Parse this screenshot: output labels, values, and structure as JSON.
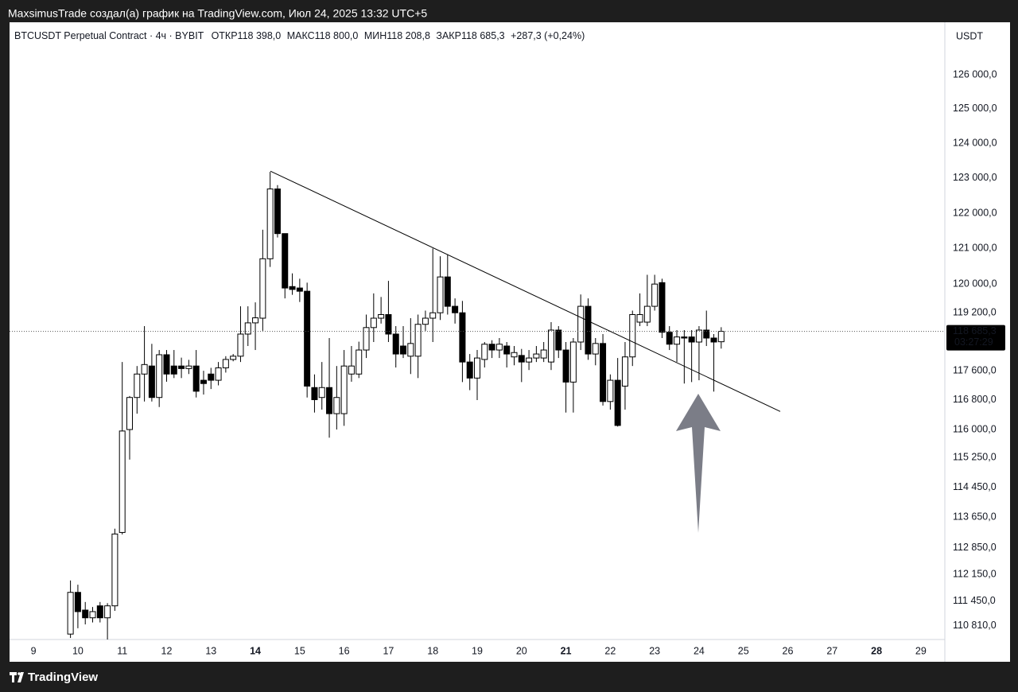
{
  "header": {
    "title": "MaxsimusTrade создал(а) график на TradingView.com, Июл 24, 2025 13:32 UTC+5"
  },
  "footer": {
    "brand": "TradingView"
  },
  "chart_data": {
    "type": "candlestick",
    "symbol": "BTCUSDT Perpetual Contract · 4ч · BYBIT",
    "ohlc_legend": [
      {
        "label": "ОТКР",
        "value": "118 398,0"
      },
      {
        "label": "МАКС",
        "value": "118 800,0"
      },
      {
        "label": "МИН",
        "value": "118 208,8"
      },
      {
        "label": "ЗАКР",
        "value": "118 685,3"
      }
    ],
    "change": "+287,3 (+0,24%)",
    "currency": "USDT",
    "x": [
      9.8333,
      10,
      10.1667,
      10.3333,
      10.5,
      10.6667,
      10.8333,
      11,
      11.1667,
      11.3333,
      11.5,
      11.6667,
      11.8333,
      12,
      12.1667,
      12.3333,
      12.5,
      12.6667,
      12.8333,
      13,
      13.1667,
      13.3333,
      13.5,
      13.6667,
      13.8333,
      14,
      14.1667,
      14.3333,
      14.5,
      14.6667,
      14.8333,
      15,
      15.1667,
      15.3333,
      15.5,
      15.6667,
      15.8333,
      16,
      16.1667,
      16.3333,
      16.5,
      16.6667,
      16.8333,
      17,
      17.1667,
      17.3333,
      17.5,
      17.6667,
      17.8333,
      18,
      18.1667,
      18.3333,
      18.5,
      18.6667,
      18.8333,
      19,
      19.1667,
      19.3333,
      19.5,
      19.6667,
      19.8333,
      20,
      20.1667,
      20.3333,
      20.5,
      20.6667,
      20.8333,
      21,
      21.1667,
      21.3333,
      21.5,
      21.6667,
      21.8333,
      22,
      22.1667,
      22.3333,
      22.5,
      22.6667,
      22.8333,
      23,
      23.1667,
      23.3333,
      23.5,
      23.6667,
      23.8333,
      24,
      24.1667,
      24.3333,
      24.5
    ],
    "open": [
      110600,
      111680,
      111220,
      111020,
      111330,
      111020,
      111330,
      113250,
      116000,
      116870,
      117510,
      117730,
      116870,
      118040,
      117730,
      117730,
      117660,
      117730,
      117340,
      117510,
      117340,
      117680,
      117910,
      118000,
      118610,
      118920,
      119050,
      120710,
      122690,
      121420,
      119930,
      119890,
      119800,
      117140,
      116870,
      117140,
      116430,
      116430,
      117510,
      117510,
      118170,
      118790,
      119050,
      119150,
      118610,
      118280,
      118000,
      118000,
      118880,
      119050,
      119200,
      120200,
      119380,
      119200,
      117840,
      117400,
      117910,
      118330,
      118170,
      118280,
      117980,
      118020,
      117840,
      117950,
      117950,
      117840,
      118720,
      118170,
      117290,
      118390,
      119380,
      118060,
      118350,
      116760,
      117340,
      117180,
      117980,
      118940,
      118940,
      119380,
      120040,
      118660,
      118330,
      118530,
      118530,
      118390,
      118720,
      118500,
      118398
    ],
    "high": [
      111990,
      111880,
      111430,
      111300,
      111430,
      111400,
      113350,
      117840,
      116910,
      117730,
      118830,
      118340,
      118170,
      118170,
      118170,
      117960,
      117900,
      118170,
      117600,
      117680,
      117840,
      118000,
      118060,
      119380,
      119380,
      119490,
      121530,
      123180,
      122800,
      121420,
      120300,
      120150,
      120040,
      117500,
      117840,
      118500,
      117730,
      118170,
      118280,
      118400,
      119150,
      119740,
      119640,
      120090,
      118830,
      118830,
      119050,
      119150,
      119260,
      121000,
      120780,
      120820,
      119600,
      119530,
      118060,
      118170,
      118390,
      118440,
      118500,
      118390,
      118280,
      118200,
      118170,
      118280,
      118390,
      118940,
      118830,
      118390,
      118500,
      119710,
      119600,
      118500,
      118610,
      117500,
      117950,
      118390,
      119260,
      119740,
      120260,
      120260,
      120150,
      118830,
      118720,
      118720,
      118720,
      118830,
      119260,
      118610,
      118800
    ],
    "low": [
      110500,
      110750,
      110850,
      110900,
      110900,
      110460,
      111200,
      113200,
      115190,
      116430,
      116760,
      116760,
      116610,
      117300,
      117400,
      117400,
      117510,
      116870,
      116950,
      117100,
      117200,
      117550,
      117860,
      117840,
      118280,
      118170,
      118700,
      120480,
      121310,
      119600,
      119700,
      119500,
      116870,
      116460,
      116540,
      115780,
      116000,
      116100,
      117300,
      117400,
      117950,
      118390,
      118900,
      118390,
      117690,
      117950,
      117510,
      117400,
      118700,
      118390,
      119000,
      119150,
      118900,
      117290,
      117070,
      116800,
      117690,
      117950,
      117950,
      117690,
      117750,
      117290,
      117620,
      117840,
      117840,
      117620,
      117950,
      116460,
      116460,
      118170,
      117900,
      117750,
      116650,
      116540,
      116080,
      116540,
      117730,
      118830,
      118830,
      119260,
      118500,
      118170,
      117840,
      117250,
      117290,
      117340,
      118280,
      117030,
      118208.8
    ],
    "close": [
      111680,
      111180,
      111020,
      111180,
      111020,
      111330,
      113210,
      115960,
      116870,
      117510,
      117770,
      116870,
      118040,
      117510,
      117510,
      117660,
      117730,
      117040,
      117250,
      117340,
      117680,
      117910,
      118000,
      118610,
      118920,
      119060,
      120710,
      122690,
      121420,
      119890,
      119850,
      119800,
      117180,
      116810,
      117140,
      116430,
      116870,
      117730,
      117730,
      118170,
      118790,
      119050,
      119150,
      118610,
      118060,
      118060,
      118350,
      118880,
      119050,
      119200,
      120200,
      119380,
      119200,
      117840,
      117400,
      117950,
      118330,
      118170,
      118330,
      118060,
      118100,
      117840,
      117950,
      118060,
      118170,
      118720,
      118170,
      117290,
      118390,
      119380,
      118060,
      118350,
      116760,
      117340,
      116110,
      117980,
      119150,
      119150,
      119380,
      120000,
      118660,
      118330,
      118530,
      118500,
      118390,
      118720,
      118500,
      118390,
      118685.3
    ],
    "up_color": "#ffffff",
    "down_color": "#000000",
    "border_color": "#000000",
    "log_scale": true,
    "grid": false,
    "xlim": [
      8.46,
      29.54
    ],
    "xticks": [
      9,
      10,
      11,
      12,
      13,
      14,
      15,
      16,
      17,
      18,
      19,
      20,
      21,
      22,
      23,
      24,
      25,
      26,
      27,
      28,
      29
    ],
    "bold_xticks": [
      14,
      21,
      28
    ],
    "ylim": [
      110460,
      127550
    ],
    "yticks": [
      {
        "value": 126000,
        "label": "126 000,0"
      },
      {
        "value": 125000,
        "label": "125 000,0"
      },
      {
        "value": 124000,
        "label": "124 000,0"
      },
      {
        "value": 123000,
        "label": "123 000,0"
      },
      {
        "value": 122000,
        "label": "122 000,0"
      },
      {
        "value": 121000,
        "label": "121 000,0"
      },
      {
        "value": 120000,
        "label": "120 000,0"
      },
      {
        "value": 119200,
        "label": "119 200,0"
      },
      {
        "value": 117600,
        "label": "117 600,0"
      },
      {
        "value": 116800,
        "label": "116 800,0"
      },
      {
        "value": 116000,
        "label": "116 000,0"
      },
      {
        "value": 115250,
        "label": "115 250,0"
      },
      {
        "value": 114450,
        "label": "114 450,0"
      },
      {
        "value": 113650,
        "label": "113 650,0"
      },
      {
        "value": 112850,
        "label": "112 850,0"
      },
      {
        "value": 112150,
        "label": "112 150,0"
      },
      {
        "value": 111450,
        "label": "111 450,0"
      },
      {
        "value": 110810,
        "label": "110 810,0"
      }
    ],
    "last_price": {
      "value": 118685.3,
      "label": "118 685,3",
      "countdown": "03:27:29"
    },
    "trendline": {
      "x": [
        14.34,
        25.83
      ],
      "y": [
        123200,
        116490
      ]
    }
  }
}
